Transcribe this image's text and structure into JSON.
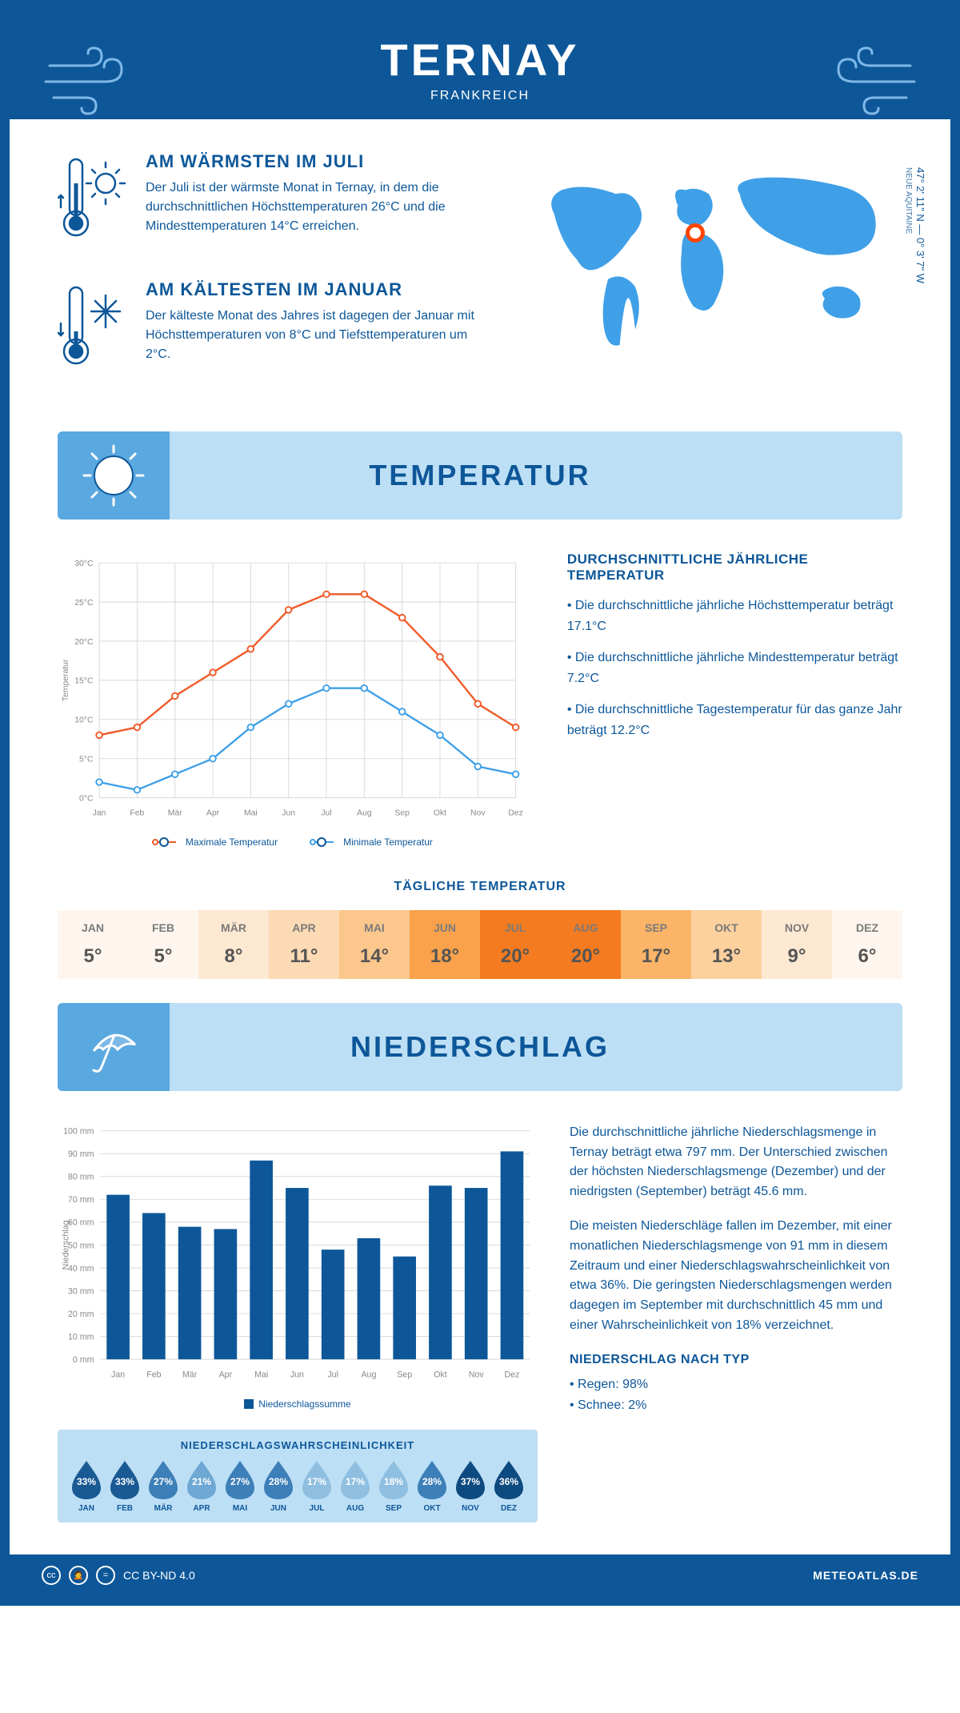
{
  "header": {
    "title": "TERNAY",
    "subtitle": "FRANKREICH"
  },
  "coords": {
    "lat": "47° 2' 11\" N — 0° 3' 7\" W",
    "region": "NEUE AQUITAINE"
  },
  "facts": {
    "warm": {
      "title": "AM WÄRMSTEN IM JULI",
      "text": "Der Juli ist der wärmste Monat in Ternay, in dem die durchschnittlichen Höchsttemperaturen 26°C und die Mindesttemperaturen 14°C erreichen."
    },
    "cold": {
      "title": "AM KÄLTESTEN IM JANUAR",
      "text": "Der kälteste Monat des Jahres ist dagegen der Januar mit Höchsttemperaturen von 8°C und Tiefsttemperaturen um 2°C."
    }
  },
  "sections": {
    "temp_title": "TEMPERATUR",
    "precip_title": "NIEDERSCHLAG"
  },
  "temp_chart": {
    "months": [
      "Jan",
      "Feb",
      "Mär",
      "Apr",
      "Mai",
      "Jun",
      "Jul",
      "Aug",
      "Sep",
      "Okt",
      "Nov",
      "Dez"
    ],
    "max_values": [
      8,
      9,
      13,
      16,
      19,
      24,
      26,
      26,
      23,
      18,
      12,
      9
    ],
    "min_values": [
      2,
      1,
      3,
      5,
      9,
      12,
      14,
      14,
      11,
      8,
      4,
      3
    ],
    "max_color": "#f05a28",
    "min_color": "#3fa0e8",
    "grid_color": "#d8d8d8",
    "y_min": 0,
    "y_max": 30,
    "y_step": 5,
    "y_label": "Temperatur",
    "legend_max": "Maximale Temperatur",
    "legend_min": "Minimale Temperatur"
  },
  "temp_text": {
    "heading": "DURCHSCHNITTLICHE JÄHRLICHE TEMPERATUR",
    "p1": "• Die durchschnittliche jährliche Höchsttemperatur beträgt 17.1°C",
    "p2": "• Die durchschnittliche jährliche Mindesttemperatur beträgt 7.2°C",
    "p3": "• Die durchschnittliche Tagestemperatur für das ganze Jahr beträgt 12.2°C"
  },
  "daily_temp": {
    "title": "TÄGLICHE TEMPERATUR",
    "months": [
      "JAN",
      "FEB",
      "MÄR",
      "APR",
      "MAI",
      "JUN",
      "JUL",
      "AUG",
      "SEP",
      "OKT",
      "NOV",
      "DEZ"
    ],
    "values": [
      "5°",
      "5°",
      "8°",
      "11°",
      "14°",
      "18°",
      "20°",
      "20°",
      "17°",
      "13°",
      "9°",
      "6°"
    ],
    "colors": [
      "#fef6ee",
      "#fef6ee",
      "#fde8d1",
      "#fcdab4",
      "#fbc78c",
      "#f9a24b",
      "#f47b20",
      "#f47b20",
      "#fbb468",
      "#fcd19e",
      "#fde8d1",
      "#fef6ee"
    ]
  },
  "precip_chart": {
    "months": [
      "Jan",
      "Feb",
      "Mär",
      "Apr",
      "Mai",
      "Jun",
      "Jul",
      "Aug",
      "Sep",
      "Okt",
      "Nov",
      "Dez"
    ],
    "values": [
      72,
      64,
      58,
      57,
      87,
      75,
      48,
      53,
      45,
      76,
      75,
      91
    ],
    "bar_color": "#0d5799",
    "grid_color": "#d8d8d8",
    "y_min": 0,
    "y_max": 100,
    "y_step": 10,
    "y_label": "Niederschlag",
    "legend": "Niederschlagssumme"
  },
  "precip_text": {
    "p1": "Die durchschnittliche jährliche Niederschlagsmenge in Ternay beträgt etwa 797 mm. Der Unterschied zwischen der höchsten Niederschlagsmenge (Dezember) und der niedrigsten (September) beträgt 45.6 mm.",
    "p2": "Die meisten Niederschläge fallen im Dezember, mit einer monatlichen Niederschlagsmenge von 91 mm in diesem Zeitraum und einer Niederschlagswahrscheinlichkeit von etwa 36%. Die geringsten Niederschlagsmengen werden dagegen im September mit durchschnittlich 45 mm und einer Wahrscheinlichkeit von 18% verzeichnet.",
    "type_heading": "NIEDERSCHLAG NACH TYP",
    "type1": "• Regen: 98%",
    "type2": "• Schnee: 2%"
  },
  "probability": {
    "title": "NIEDERSCHLAGSWAHRSCHEINLICHKEIT",
    "months": [
      "JAN",
      "FEB",
      "MÄR",
      "APR",
      "MAI",
      "JUN",
      "JUL",
      "AUG",
      "SEP",
      "OKT",
      "NOV",
      "DEZ"
    ],
    "values": [
      "33%",
      "33%",
      "27%",
      "21%",
      "27%",
      "28%",
      "17%",
      "17%",
      "18%",
      "28%",
      "37%",
      "36%"
    ],
    "colors": [
      "#1a5a94",
      "#1a5a94",
      "#3d7fb8",
      "#6fa8d4",
      "#3d7fb8",
      "#3d7fb8",
      "#8fbfe0",
      "#8fbfe0",
      "#8fbfe0",
      "#3d7fb8",
      "#0d4a80",
      "#0d4a80"
    ]
  },
  "footer": {
    "license": "CC BY-ND 4.0",
    "site": "METEOATLAS.DE"
  }
}
